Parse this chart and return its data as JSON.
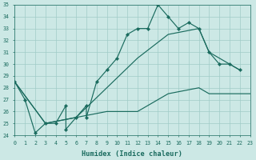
{
  "xlabel": "Humidex (Indice chaleur)",
  "bg_color": "#cce8e5",
  "grid_color": "#a0ccc8",
  "line_color": "#1a6b5e",
  "xmin": 0,
  "xmax": 23,
  "ymin": 24,
  "ymax": 35,
  "line1_x": [
    0,
    1,
    2,
    3,
    4,
    5,
    5,
    6,
    7,
    7,
    8,
    9,
    10,
    11,
    12,
    13,
    14,
    15,
    16,
    17,
    18,
    19,
    20,
    21,
    22
  ],
  "line1_y": [
    28.5,
    27.0,
    24.2,
    25.0,
    25.0,
    26.5,
    24.5,
    25.5,
    26.5,
    25.5,
    28.5,
    29.5,
    30.5,
    32.5,
    33.0,
    33.0,
    35.0,
    34.0,
    33.0,
    33.5,
    33.0,
    31.0,
    30.0,
    30.0,
    29.5
  ],
  "line2_x": [
    0,
    3,
    6,
    9,
    12,
    15,
    18,
    19,
    22
  ],
  "line2_y": [
    28.5,
    25.0,
    25.5,
    28.0,
    30.5,
    32.5,
    33.0,
    31.0,
    29.5
  ],
  "line3_x": [
    0,
    3,
    6,
    9,
    12,
    15,
    18,
    19,
    22,
    23
  ],
  "line3_y": [
    28.5,
    25.0,
    25.5,
    26.0,
    26.0,
    27.5,
    28.0,
    27.5,
    27.5,
    27.5
  ]
}
